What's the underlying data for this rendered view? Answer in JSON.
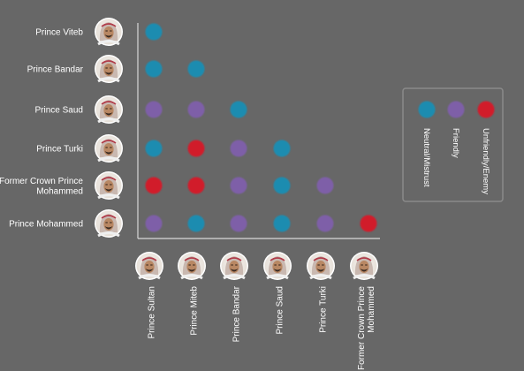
{
  "chart_data": {
    "type": "scatter",
    "title": "",
    "rows": [
      {
        "label_lines": [
          "Prince Viteb"
        ]
      },
      {
        "label_lines": [
          "Prince Bandar"
        ]
      },
      {
        "label_lines": [
          "Prince Saud"
        ]
      },
      {
        "label_lines": [
          "Prince Turki"
        ]
      },
      {
        "label_lines": [
          "Former Crown Prince",
          "Mohammed"
        ]
      },
      {
        "label_lines": [
          "Prince Mohammed"
        ]
      }
    ],
    "columns": [
      {
        "label_lines": [
          "Prince Sultan"
        ]
      },
      {
        "label_lines": [
          "Prince Miteb"
        ]
      },
      {
        "label_lines": [
          "Prince Bandar"
        ]
      },
      {
        "label_lines": [
          "Prince Saud"
        ]
      },
      {
        "label_lines": [
          "Prince Turki"
        ]
      },
      {
        "label_lines": [
          "Former Crown Prince",
          "Mohammed"
        ]
      }
    ],
    "relationships": [
      [
        "neutral"
      ],
      [
        "neutral",
        "neutral"
      ],
      [
        "friendly",
        "friendly",
        "neutral"
      ],
      [
        "neutral",
        "unfriendly",
        "friendly",
        "neutral"
      ],
      [
        "unfriendly",
        "unfriendly",
        "friendly",
        "neutral",
        "friendly"
      ],
      [
        "friendly",
        "neutral",
        "friendly",
        "neutral",
        "friendly",
        "unfriendly"
      ]
    ],
    "legend": [
      {
        "key": "neutral",
        "label": "Neutral/Mistrust",
        "color": "#1b8cb0"
      },
      {
        "key": "friendly",
        "label": "Friendly",
        "color": "#7e5fa8"
      },
      {
        "key": "unfriendly",
        "label": "Unfriendly/Enemy",
        "color": "#d11a2a"
      }
    ],
    "legend_position": "right",
    "grid": false
  },
  "colors": {
    "background": "#676767",
    "axis": "#d8d8d8",
    "legend_border": "#8a8a8a",
    "text": "#ffffff"
  }
}
